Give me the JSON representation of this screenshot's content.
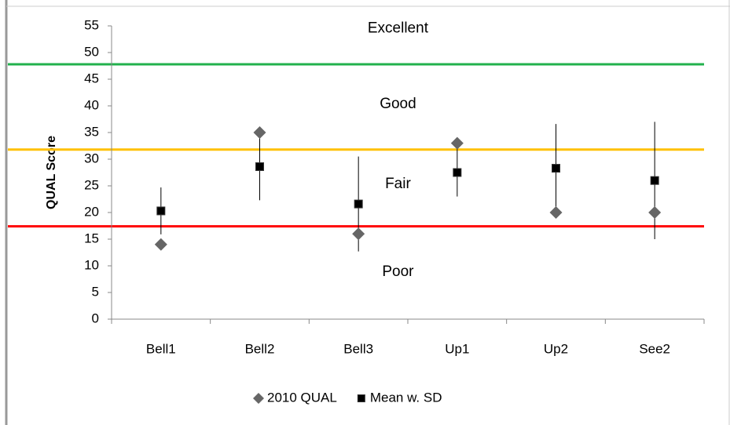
{
  "chart_data": {
    "type": "scatter",
    "y_label": "QUAL Score",
    "categories": [
      "Bell1",
      "Bell2",
      "Bell3",
      "Up1",
      "Up2",
      "See2"
    ],
    "series": [
      {
        "name": "2010 QUAL",
        "color": "#666666",
        "marker": "diamond",
        "values": [
          14,
          35,
          16,
          33,
          20,
          20
        ]
      },
      {
        "name": "Mean w. SD",
        "color": "#000000",
        "marker": "square",
        "values": [
          20.3,
          28.6,
          21.6,
          27.5,
          28.3,
          26
        ],
        "errors": [
          4.4,
          6.3,
          8.9,
          4.5,
          8.3,
          11
        ]
      }
    ],
    "thresholds": [
      {
        "value": 47.8,
        "color": "#22b14c"
      },
      {
        "value": 31.8,
        "color": "#ffc000"
      },
      {
        "value": 17.4,
        "color": "#ff0000"
      }
    ],
    "annotations": [
      {
        "text": "Excellent",
        "value": 54.5
      },
      {
        "text": "Good",
        "value": 40.3
      },
      {
        "text": "Fair",
        "value": 25.3
      },
      {
        "text": "Poor",
        "value": 8.8
      }
    ],
    "ylim": [
      0,
      55
    ],
    "yticks": [
      0,
      5,
      10,
      15,
      20,
      25,
      30,
      35,
      40,
      45,
      50,
      55
    ],
    "grid": false,
    "legend": "bottom"
  }
}
